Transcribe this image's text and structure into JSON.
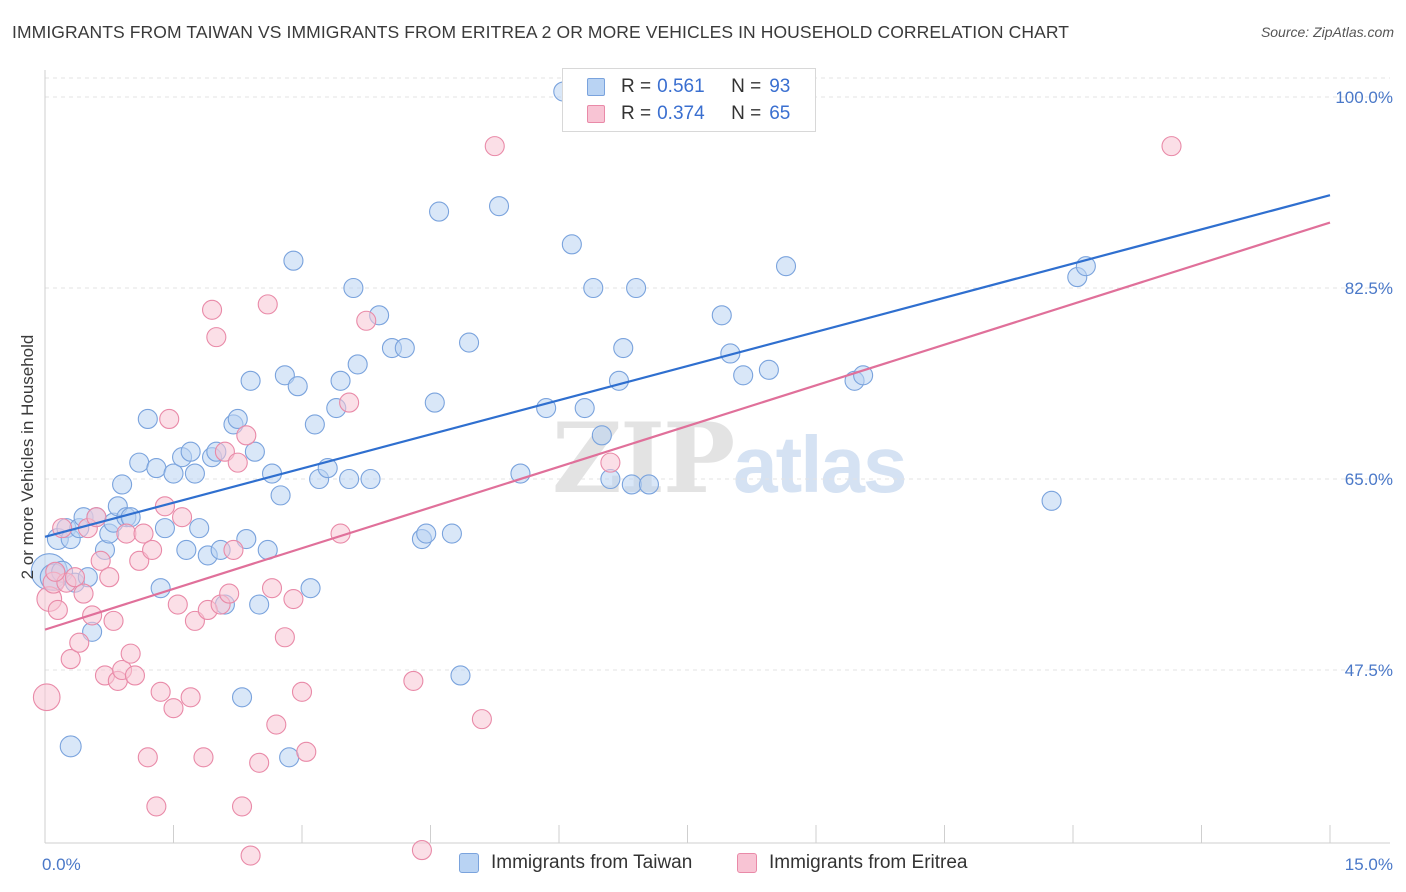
{
  "title": "IMMIGRANTS FROM TAIWAN VS IMMIGRANTS FROM ERITREA 2 OR MORE VEHICLES IN HOUSEHOLD CORRELATION CHART",
  "source": "Source: ZipAtlas.com",
  "watermark": {
    "zip": "ZIP",
    "atlas": "atlas"
  },
  "legend": {
    "taiwan": {
      "r_label": "R =",
      "r_value": "0.561",
      "n_label": "N =",
      "n_value": "93"
    },
    "eritrea": {
      "r_label": "R =",
      "r_value": "0.374",
      "n_label": "N =",
      "n_value": "65"
    }
  },
  "colors": {
    "taiwan_fill": "#b9d3f3",
    "taiwan_stroke": "#7aa3dd",
    "taiwan_line": "#2f6fcf",
    "eritrea_fill": "#f8c4d4",
    "eritrea_stroke": "#e98aa8",
    "eritrea_line": "#e0709a",
    "grid": "#e3e3e3",
    "tick_text": "#4a78c8"
  },
  "chart_data": {
    "type": "scatter",
    "title": "IMMIGRANTS FROM TAIWAN VS IMMIGRANTS FROM ERITREA 2 OR MORE VEHICLES IN HOUSEHOLD CORRELATION CHART",
    "xlabel": "",
    "ylabel": "2 or more Vehicles in Household",
    "xlim": [
      0,
      15
    ],
    "ylim": [
      30,
      102
    ],
    "x_tick_labels": [
      "0.0%",
      "15.0%"
    ],
    "y_ticks": [
      47.5,
      65.0,
      82.5,
      100.0
    ],
    "y_tick_labels": [
      "47.5%",
      "65.0%",
      "82.5%",
      "100.0%"
    ],
    "grid": "horizontal dashed",
    "legend_position": "top-center",
    "series": [
      {
        "name": "Immigrants from Taiwan",
        "trend": {
          "x": [
            0,
            15
          ],
          "y": [
            59.7,
            91.0
          ]
        },
        "points": [
          [
            0.05,
            56.5,
            1.9
          ],
          [
            0.1,
            56.0,
            1.4
          ],
          [
            0.15,
            59.5,
            1.1
          ],
          [
            0.2,
            56.5,
            1.1
          ],
          [
            0.25,
            60.5,
            1.0
          ],
          [
            0.3,
            59.5,
            1.0
          ],
          [
            0.35,
            55.5,
            1.0
          ],
          [
            0.4,
            60.5,
            1.0
          ],
          [
            0.45,
            61.5,
            1.0
          ],
          [
            0.5,
            56.0,
            1.0
          ],
          [
            0.55,
            51.0,
            1.0
          ],
          [
            0.6,
            61.5,
            1.0
          ],
          [
            0.7,
            58.5,
            1.0
          ],
          [
            0.75,
            60.0,
            1.0
          ],
          [
            0.8,
            61.0,
            1.0
          ],
          [
            0.85,
            62.5,
            1.0
          ],
          [
            0.9,
            64.5,
            1.0
          ],
          [
            0.95,
            61.5,
            1.0
          ],
          [
            1.0,
            61.5,
            1.0
          ],
          [
            1.1,
            66.5,
            1.0
          ],
          [
            1.2,
            70.5,
            1.0
          ],
          [
            1.3,
            66.0,
            1.0
          ],
          [
            1.35,
            55.0,
            1.0
          ],
          [
            1.4,
            60.5,
            1.0
          ],
          [
            1.5,
            65.5,
            1.0
          ],
          [
            1.6,
            67.0,
            1.0
          ],
          [
            1.65,
            58.5,
            1.0
          ],
          [
            1.7,
            67.5,
            1.0
          ],
          [
            1.75,
            65.5,
            1.0
          ],
          [
            1.8,
            60.5,
            1.0
          ],
          [
            1.9,
            58.0,
            1.0
          ],
          [
            1.95,
            67.0,
            1.0
          ],
          [
            2.0,
            67.5,
            1.0
          ],
          [
            2.05,
            58.5,
            1.0
          ],
          [
            2.1,
            53.5,
            1.0
          ],
          [
            2.2,
            70.0,
            1.0
          ],
          [
            2.25,
            70.5,
            1.0
          ],
          [
            2.3,
            45.0,
            1.0
          ],
          [
            2.35,
            59.5,
            1.0
          ],
          [
            2.4,
            74.0,
            1.0
          ],
          [
            2.45,
            67.5,
            1.0
          ],
          [
            2.5,
            53.5,
            1.0
          ],
          [
            2.6,
            58.5,
            1.0
          ],
          [
            2.65,
            65.5,
            1.0
          ],
          [
            2.75,
            63.5,
            1.0
          ],
          [
            2.8,
            74.5,
            1.0
          ],
          [
            2.85,
            39.5,
            1.0
          ],
          [
            2.9,
            85.0,
            1.0
          ],
          [
            2.95,
            73.5,
            1.0
          ],
          [
            3.1,
            55.0,
            1.0
          ],
          [
            3.15,
            70.0,
            1.0
          ],
          [
            3.2,
            65.0,
            1.0
          ],
          [
            3.3,
            66.0,
            1.0
          ],
          [
            3.4,
            71.5,
            1.0
          ],
          [
            3.45,
            74.0,
            1.0
          ],
          [
            3.55,
            65.0,
            1.0
          ],
          [
            3.6,
            82.5,
            1.0
          ],
          [
            3.65,
            75.5,
            1.0
          ],
          [
            3.8,
            65.0,
            1.0
          ],
          [
            3.9,
            80.0,
            1.0
          ],
          [
            4.05,
            77.0,
            1.0
          ],
          [
            4.2,
            77.0,
            1.0
          ],
          [
            4.4,
            59.5,
            1.0
          ],
          [
            4.45,
            60.0,
            1.0
          ],
          [
            4.55,
            72.0,
            1.0
          ],
          [
            4.6,
            89.5,
            1.0
          ],
          [
            4.75,
            60.0,
            1.0
          ],
          [
            4.85,
            47.0,
            1.0
          ],
          [
            4.95,
            77.5,
            1.0
          ],
          [
            5.3,
            90.0,
            1.0
          ],
          [
            5.55,
            65.5,
            1.0
          ],
          [
            5.85,
            71.5,
            1.0
          ],
          [
            6.05,
            100.5,
            1.0
          ],
          [
            6.15,
            86.5,
            1.0
          ],
          [
            6.3,
            71.5,
            1.0
          ],
          [
            6.4,
            82.5,
            1.0
          ],
          [
            6.5,
            69.0,
            1.0
          ],
          [
            6.6,
            65.0,
            1.0
          ],
          [
            6.7,
            74.0,
            1.0
          ],
          [
            6.75,
            77.0,
            1.0
          ],
          [
            6.85,
            64.5,
            1.0
          ],
          [
            6.9,
            82.5,
            1.0
          ],
          [
            7.05,
            64.5,
            1.0
          ],
          [
            7.9,
            80.0,
            1.0
          ],
          [
            8.0,
            76.5,
            1.0
          ],
          [
            8.15,
            74.5,
            1.0
          ],
          [
            8.45,
            75.0,
            1.0
          ],
          [
            8.65,
            84.5,
            1.0
          ],
          [
            9.45,
            74.0,
            1.0
          ],
          [
            9.55,
            74.5,
            1.0
          ],
          [
            11.75,
            63.0,
            1.0
          ],
          [
            12.05,
            83.5,
            1.0
          ],
          [
            12.15,
            84.5,
            1.0
          ],
          [
            0.3,
            40.5,
            1.1
          ]
        ]
      },
      {
        "name": "Immigrants from Eritrea",
        "trend": {
          "x": [
            0,
            15
          ],
          "y": [
            51.2,
            88.5
          ]
        },
        "points": [
          [
            0.02,
            45.0,
            1.4
          ],
          [
            0.05,
            54.0,
            1.3
          ],
          [
            0.1,
            55.5,
            1.1
          ],
          [
            0.15,
            53.0,
            1.0
          ],
          [
            0.2,
            60.5,
            1.0
          ],
          [
            0.25,
            55.5,
            1.0
          ],
          [
            0.3,
            48.5,
            1.0
          ],
          [
            0.35,
            56.0,
            1.0
          ],
          [
            0.4,
            50.0,
            1.0
          ],
          [
            0.45,
            54.5,
            1.0
          ],
          [
            0.5,
            60.5,
            1.0
          ],
          [
            0.55,
            52.5,
            1.0
          ],
          [
            0.6,
            61.5,
            1.0
          ],
          [
            0.65,
            57.5,
            1.0
          ],
          [
            0.7,
            47.0,
            1.0
          ],
          [
            0.75,
            56.0,
            1.0
          ],
          [
            0.8,
            52.0,
            1.0
          ],
          [
            0.85,
            46.5,
            1.0
          ],
          [
            0.9,
            47.5,
            1.0
          ],
          [
            0.95,
            60.0,
            1.0
          ],
          [
            1.0,
            49.0,
            1.0
          ],
          [
            1.05,
            47.0,
            1.0
          ],
          [
            1.1,
            57.5,
            1.0
          ],
          [
            1.15,
            60.0,
            1.0
          ],
          [
            1.2,
            39.5,
            1.0
          ],
          [
            1.25,
            58.5,
            1.0
          ],
          [
            1.3,
            35.0,
            1.0
          ],
          [
            1.35,
            45.5,
            1.0
          ],
          [
            1.4,
            62.5,
            1.0
          ],
          [
            1.45,
            70.5,
            1.0
          ],
          [
            1.5,
            44.0,
            1.0
          ],
          [
            1.55,
            53.5,
            1.0
          ],
          [
            1.6,
            61.5,
            1.0
          ],
          [
            1.7,
            45.0,
            1.0
          ],
          [
            1.75,
            52.0,
            1.0
          ],
          [
            1.85,
            39.5,
            1.0
          ],
          [
            1.9,
            53.0,
            1.0
          ],
          [
            1.95,
            80.5,
            1.0
          ],
          [
            2.0,
            78.0,
            1.0
          ],
          [
            2.05,
            53.5,
            1.0
          ],
          [
            2.1,
            67.5,
            1.0
          ],
          [
            2.15,
            54.5,
            1.0
          ],
          [
            2.2,
            58.5,
            1.0
          ],
          [
            2.25,
            66.5,
            1.0
          ],
          [
            2.3,
            35.0,
            1.0
          ],
          [
            2.35,
            69.0,
            1.0
          ],
          [
            2.4,
            30.5,
            1.0
          ],
          [
            2.5,
            39.0,
            1.0
          ],
          [
            2.6,
            81.0,
            1.0
          ],
          [
            2.65,
            55.0,
            1.0
          ],
          [
            2.7,
            42.5,
            1.0
          ],
          [
            2.8,
            50.5,
            1.0
          ],
          [
            2.9,
            54.0,
            1.0
          ],
          [
            3.0,
            45.5,
            1.0
          ],
          [
            3.05,
            40.0,
            1.0
          ],
          [
            3.45,
            60.0,
            1.0
          ],
          [
            3.55,
            72.0,
            1.0
          ],
          [
            3.75,
            79.5,
            1.0
          ],
          [
            4.3,
            46.5,
            1.0
          ],
          [
            4.4,
            31.0,
            1.0
          ],
          [
            5.1,
            43.0,
            1.0
          ],
          [
            5.25,
            95.5,
            1.0
          ],
          [
            6.6,
            66.5,
            1.0
          ],
          [
            13.15,
            95.5,
            1.0
          ],
          [
            0.12,
            56.5,
            1.0
          ]
        ]
      }
    ]
  },
  "bottom_legend": {
    "taiwan": "Immigrants from Taiwan",
    "eritrea": "Immigrants from Eritrea"
  }
}
